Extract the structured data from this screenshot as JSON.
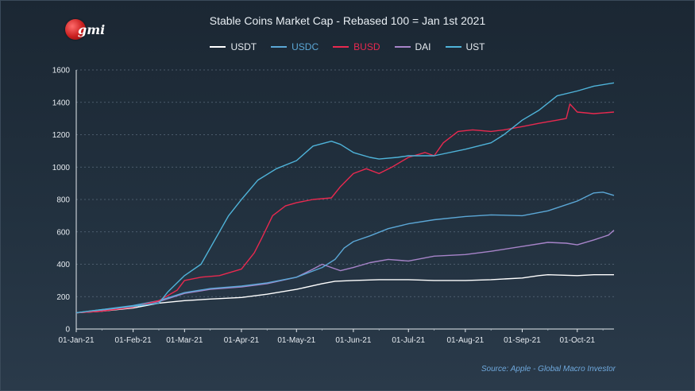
{
  "logo": {
    "text": "gmi"
  },
  "source": "Source: Apple - Global Macro Investor",
  "chart_data": {
    "type": "line",
    "title": "Stable Coins Market Cap - Rebased 100 = Jan 1st 2021",
    "xlabel": "",
    "ylabel": "",
    "ylim": [
      0,
      1600
    ],
    "yticks": [
      "0",
      "200",
      "400",
      "600",
      "800",
      "1000",
      "1200",
      "1400",
      "1600"
    ],
    "xticks": [
      "01-Jan-21",
      "01-Feb-21",
      "01-Mar-21",
      "01-Apr-21",
      "01-May-21",
      "01-Jun-21",
      "01-Jul-21",
      "01-Aug-21",
      "01-Sep-21",
      "01-Oct-21"
    ],
    "grid": true,
    "legend_position": "top",
    "series": [
      {
        "name": "USDT",
        "color": "#ffffff",
        "points": [
          [
            "2021-01-01",
            100
          ],
          [
            "2021-01-15",
            110
          ],
          [
            "2021-02-01",
            130
          ],
          [
            "2021-02-15",
            160
          ],
          [
            "2021-03-01",
            175
          ],
          [
            "2021-03-15",
            185
          ],
          [
            "2021-04-01",
            195
          ],
          [
            "2021-04-15",
            215
          ],
          [
            "2021-05-01",
            245
          ],
          [
            "2021-05-15",
            280
          ],
          [
            "2021-05-22",
            295
          ],
          [
            "2021-06-01",
            300
          ],
          [
            "2021-06-15",
            305
          ],
          [
            "2021-07-01",
            305
          ],
          [
            "2021-07-15",
            300
          ],
          [
            "2021-08-01",
            300
          ],
          [
            "2021-08-15",
            305
          ],
          [
            "2021-09-01",
            315
          ],
          [
            "2021-09-10",
            330
          ],
          [
            "2021-09-15",
            335
          ],
          [
            "2021-10-01",
            330
          ],
          [
            "2021-10-10",
            335
          ],
          [
            "2021-10-21",
            335
          ]
        ]
      },
      {
        "name": "USDC",
        "color": "#5ba7d6",
        "points": [
          [
            "2021-01-01",
            100
          ],
          [
            "2021-01-15",
            120
          ],
          [
            "2021-02-01",
            145
          ],
          [
            "2021-02-15",
            175
          ],
          [
            "2021-03-01",
            225
          ],
          [
            "2021-03-15",
            250
          ],
          [
            "2021-04-01",
            265
          ],
          [
            "2021-04-15",
            285
          ],
          [
            "2021-05-01",
            320
          ],
          [
            "2021-05-15",
            380
          ],
          [
            "2021-05-22",
            430
          ],
          [
            "2021-05-27",
            500
          ],
          [
            "2021-06-01",
            540
          ],
          [
            "2021-06-10",
            575
          ],
          [
            "2021-06-20",
            620
          ],
          [
            "2021-07-01",
            650
          ],
          [
            "2021-07-15",
            675
          ],
          [
            "2021-08-01",
            695
          ],
          [
            "2021-08-15",
            705
          ],
          [
            "2021-09-01",
            700
          ],
          [
            "2021-09-15",
            730
          ],
          [
            "2021-10-01",
            790
          ],
          [
            "2021-10-10",
            840
          ],
          [
            "2021-10-15",
            845
          ],
          [
            "2021-10-21",
            825
          ]
        ]
      },
      {
        "name": "BUSD",
        "color": "#e8294f",
        "points": [
          [
            "2021-01-01",
            100
          ],
          [
            "2021-01-15",
            110
          ],
          [
            "2021-02-01",
            135
          ],
          [
            "2021-02-15",
            175
          ],
          [
            "2021-02-25",
            240
          ],
          [
            "2021-03-01",
            300
          ],
          [
            "2021-03-10",
            320
          ],
          [
            "2021-03-20",
            330
          ],
          [
            "2021-04-01",
            370
          ],
          [
            "2021-04-08",
            470
          ],
          [
            "2021-04-12",
            560
          ],
          [
            "2021-04-18",
            700
          ],
          [
            "2021-04-25",
            760
          ],
          [
            "2021-05-01",
            780
          ],
          [
            "2021-05-10",
            800
          ],
          [
            "2021-05-20",
            810
          ],
          [
            "2021-05-25",
            880
          ],
          [
            "2021-06-01",
            960
          ],
          [
            "2021-06-08",
            990
          ],
          [
            "2021-06-15",
            960
          ],
          [
            "2021-06-22",
            1000
          ],
          [
            "2021-07-01",
            1060
          ],
          [
            "2021-07-10",
            1090
          ],
          [
            "2021-07-15",
            1070
          ],
          [
            "2021-07-20",
            1150
          ],
          [
            "2021-07-28",
            1220
          ],
          [
            "2021-08-05",
            1230
          ],
          [
            "2021-08-15",
            1220
          ],
          [
            "2021-08-22",
            1230
          ],
          [
            "2021-09-01",
            1250
          ],
          [
            "2021-09-10",
            1270
          ],
          [
            "2021-09-20",
            1290
          ],
          [
            "2021-09-25",
            1300
          ],
          [
            "2021-09-27",
            1390
          ],
          [
            "2021-10-01",
            1340
          ],
          [
            "2021-10-10",
            1330
          ],
          [
            "2021-10-21",
            1340
          ]
        ]
      },
      {
        "name": "DAI",
        "color": "#a784c9",
        "points": [
          [
            "2021-01-01",
            100
          ],
          [
            "2021-01-15",
            115
          ],
          [
            "2021-02-01",
            140
          ],
          [
            "2021-02-15",
            170
          ],
          [
            "2021-03-01",
            220
          ],
          [
            "2021-03-15",
            245
          ],
          [
            "2021-04-01",
            260
          ],
          [
            "2021-04-15",
            280
          ],
          [
            "2021-05-01",
            320
          ],
          [
            "2021-05-10",
            370
          ],
          [
            "2021-05-15",
            400
          ],
          [
            "2021-05-20",
            380
          ],
          [
            "2021-05-25",
            360
          ],
          [
            "2021-06-01",
            380
          ],
          [
            "2021-06-10",
            410
          ],
          [
            "2021-06-20",
            430
          ],
          [
            "2021-07-01",
            420
          ],
          [
            "2021-07-15",
            450
          ],
          [
            "2021-08-01",
            460
          ],
          [
            "2021-08-15",
            480
          ],
          [
            "2021-09-01",
            510
          ],
          [
            "2021-09-15",
            535
          ],
          [
            "2021-09-25",
            530
          ],
          [
            "2021-10-01",
            520
          ],
          [
            "2021-10-10",
            550
          ],
          [
            "2021-10-18",
            580
          ],
          [
            "2021-10-21",
            610
          ]
        ]
      },
      {
        "name": "UST",
        "color": "#4fb3d9",
        "points": [
          [
            "2021-01-01",
            100
          ],
          [
            "2021-01-15",
            120
          ],
          [
            "2021-02-01",
            140
          ],
          [
            "2021-02-15",
            160
          ],
          [
            "2021-02-20",
            230
          ],
          [
            "2021-03-01",
            330
          ],
          [
            "2021-03-10",
            400
          ],
          [
            "2021-03-20",
            600
          ],
          [
            "2021-03-25",
            700
          ],
          [
            "2021-04-01",
            800
          ],
          [
            "2021-04-10",
            920
          ],
          [
            "2021-04-20",
            990
          ],
          [
            "2021-05-01",
            1040
          ],
          [
            "2021-05-10",
            1130
          ],
          [
            "2021-05-20",
            1160
          ],
          [
            "2021-05-25",
            1140
          ],
          [
            "2021-06-01",
            1090
          ],
          [
            "2021-06-10",
            1060
          ],
          [
            "2021-06-15",
            1050
          ],
          [
            "2021-06-25",
            1060
          ],
          [
            "2021-07-01",
            1070
          ],
          [
            "2021-07-15",
            1070
          ],
          [
            "2021-08-01",
            1110
          ],
          [
            "2021-08-15",
            1150
          ],
          [
            "2021-08-22",
            1200
          ],
          [
            "2021-09-01",
            1290
          ],
          [
            "2021-09-10",
            1350
          ],
          [
            "2021-09-20",
            1440
          ],
          [
            "2021-10-01",
            1470
          ],
          [
            "2021-10-10",
            1500
          ],
          [
            "2021-10-21",
            1520
          ]
        ]
      }
    ]
  }
}
